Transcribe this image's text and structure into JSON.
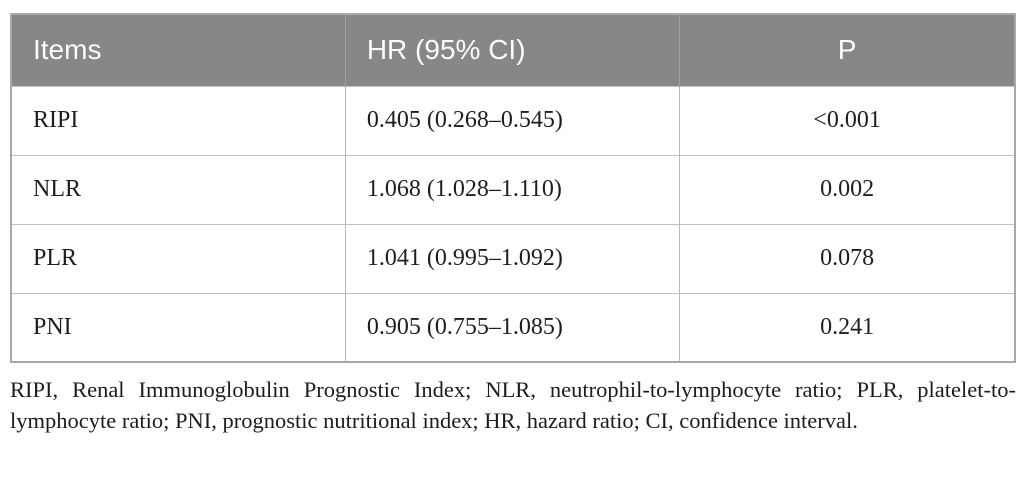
{
  "table": {
    "columns": [
      "Items",
      "HR (95% CI)",
      "P"
    ],
    "rows": [
      {
        "item": "RIPI",
        "hr": "0.405 (0.268–0.545)",
        "p": "<0.001"
      },
      {
        "item": "NLR",
        "hr": "1.068 (1.028–1.110)",
        "p": "0.002"
      },
      {
        "item": "PLR",
        "hr": "1.041 (0.995–1.092)",
        "p": "0.078"
      },
      {
        "item": "PNI",
        "hr": "0.905 (0.755–1.085)",
        "p": "0.241"
      }
    ]
  },
  "footnote": "RIPI, Renal Immunoglobulin Prognostic Index; NLR, neutrophil-to-lymphocyte ratio; PLR, platelet-to-lymphocyte ratio; PNI, prognostic nutritional index; HR, hazard ratio; CI, confidence interval.",
  "colors": {
    "header_bg": "#878787",
    "header_text": "#fbfbfb",
    "body_text": "#1e1e1e",
    "outer_border": "#a8a8a8",
    "row_divider": "#c2c2c2"
  }
}
